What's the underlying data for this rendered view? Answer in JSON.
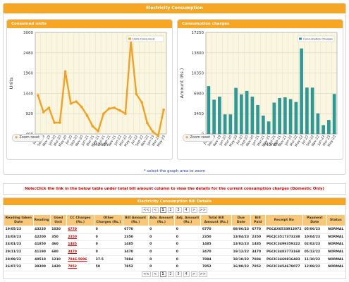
{
  "page_title": "Electricity Consumption",
  "charts": {
    "units": {
      "title": "Consumed units",
      "zoom_label": "Zoom reset",
      "legend": "Units Consumed"
    },
    "charges": {
      "title": "Consumption charges",
      "zoom_label": "Zoom reset",
      "legend": "Consumption Charges"
    }
  },
  "select_note": "* select the graph area to zoom",
  "note": "Note:Click the link in the below table under total bill amount column to view the details for the current consumption charges (Domestic Only)",
  "bill": {
    "title": "Electricity Consumption Bill Details",
    "pager": [
      "<<",
      "<",
      "1",
      "2",
      "3",
      "4",
      ">",
      ">>"
    ],
    "active_page": "1",
    "columns": [
      "Reading taken Date",
      "Reading",
      "Used Unit",
      "CC Charges (Rs.)",
      "Other Charges (Rs.)",
      "Bill Amount (Rs.)",
      "Adv. Amount (Rs.)",
      "Adj. Amount (Rs.)",
      "Total Bill Amount (Rs.)",
      "Due Date",
      "Bill Paid",
      "Receipt No",
      "Payment Date",
      "Status"
    ],
    "rows": [
      [
        "19/05/23",
        "43220",
        "1020",
        "6770",
        "0",
        "6770",
        "0",
        "0",
        "6770",
        "08/06/23",
        "6770",
        "PGCAX0533913972",
        "05/06/23",
        "NORMAL"
      ],
      [
        "24/03/23",
        "42200",
        "350",
        "2350",
        "0",
        "2350",
        "0",
        "0",
        "2350",
        "13/04/23",
        "2350",
        "PGCJC3517373238",
        "10/04/23",
        "NORMAL"
      ],
      [
        "24/01/23",
        "41850",
        "460",
        "1485",
        "0",
        "1485",
        "0",
        "0",
        "1485",
        "13/02/23",
        "1485",
        "PGCIC3499359222",
        "02/02/23",
        "NORMAL"
      ],
      [
        "29/11/22",
        "41190",
        "680",
        "3470",
        "0",
        "3470",
        "0",
        "0",
        "3470",
        "19/12/22",
        "3470",
        "PGCIC3483773168",
        "05/12/22",
        "NORMAL"
      ],
      [
        "28/09/22",
        "40510",
        "1210",
        "7846.5996",
        "37.5",
        "7884",
        "0",
        "0",
        "7884",
        "18/10/22",
        "7884",
        "PGCIC3469816483",
        "11/10/22",
        "NORMAL"
      ],
      [
        "26/07/22",
        "39300",
        "1420",
        "7852",
        "50",
        "7852",
        "0",
        "0",
        "7852",
        "16/08/22",
        "7852",
        "PGCIC3454678077",
        "12/08/22",
        "NORMAL"
      ]
    ]
  },
  "chart_data": [
    {
      "type": "line",
      "title": "Consumed units",
      "xlabel": "Month",
      "ylabel": "Units",
      "ylim": [
        400,
        3000
      ],
      "yticks": [
        400,
        920,
        1440,
        1960,
        2480,
        3000
      ],
      "grid": true,
      "legend_position": "top-right",
      "series": [
        {
          "name": "Units Consumed",
          "color": "#f5a020",
          "x": [
            "Jul-19",
            "Sep-19",
            "Nov-19",
            "Jan-20",
            "Mar-20",
            "May-20",
            "Jul-20",
            "Sep-20",
            "Nov-20",
            "Jan-21",
            "Mar-21",
            "May-21",
            "Jul-21",
            "Sep-21",
            "Nov-21",
            "Jan-22",
            "Mar-22",
            "May-22",
            "Jul-22",
            "Sep-22",
            "Nov-22",
            "Jan-23",
            "Mar-23",
            "May-23"
          ],
          "values": [
            1390,
            960,
            1070,
            690,
            690,
            2000,
            1180,
            1230,
            1090,
            870,
            600,
            470,
            920,
            1050,
            1070,
            1000,
            920,
            2780,
            1420,
            1210,
            680,
            460,
            350,
            1020
          ]
        }
      ]
    },
    {
      "type": "bar",
      "title": "Consumption charges",
      "xlabel": "Month",
      "ylabel": "Amount (Rs.)",
      "ylim": [
        0,
        17250
      ],
      "yticks": [
        0,
        3450,
        6900,
        10350,
        13800,
        17250
      ],
      "grid": true,
      "legend_position": "top-right",
      "series": [
        {
          "name": "Consumption Charges",
          "color": "#2a9a9a",
          "categories": [
            "Jul-19",
            "Sep-19",
            "Nov-19",
            "Jan-20",
            "Mar-20",
            "May-20",
            "Jul-20",
            "Sep-20",
            "Nov-20",
            "Jan-21",
            "Mar-21",
            "May-21",
            "Jul-21",
            "Sep-21",
            "Nov-21",
            "Jan-22",
            "Mar-22",
            "May-22",
            "Jul-22",
            "Sep-22",
            "Nov-22",
            "Jan-23",
            "Mar-23",
            "May-23"
          ],
          "values": [
            8100,
            5800,
            6300,
            3300,
            3300,
            7800,
            6700,
            7300,
            6300,
            4900,
            3100,
            2100,
            5300,
            6100,
            6200,
            5900,
            5400,
            14500,
            7852,
            7846.6,
            3470,
            1485,
            2350,
            6770
          ]
        }
      ]
    }
  ]
}
